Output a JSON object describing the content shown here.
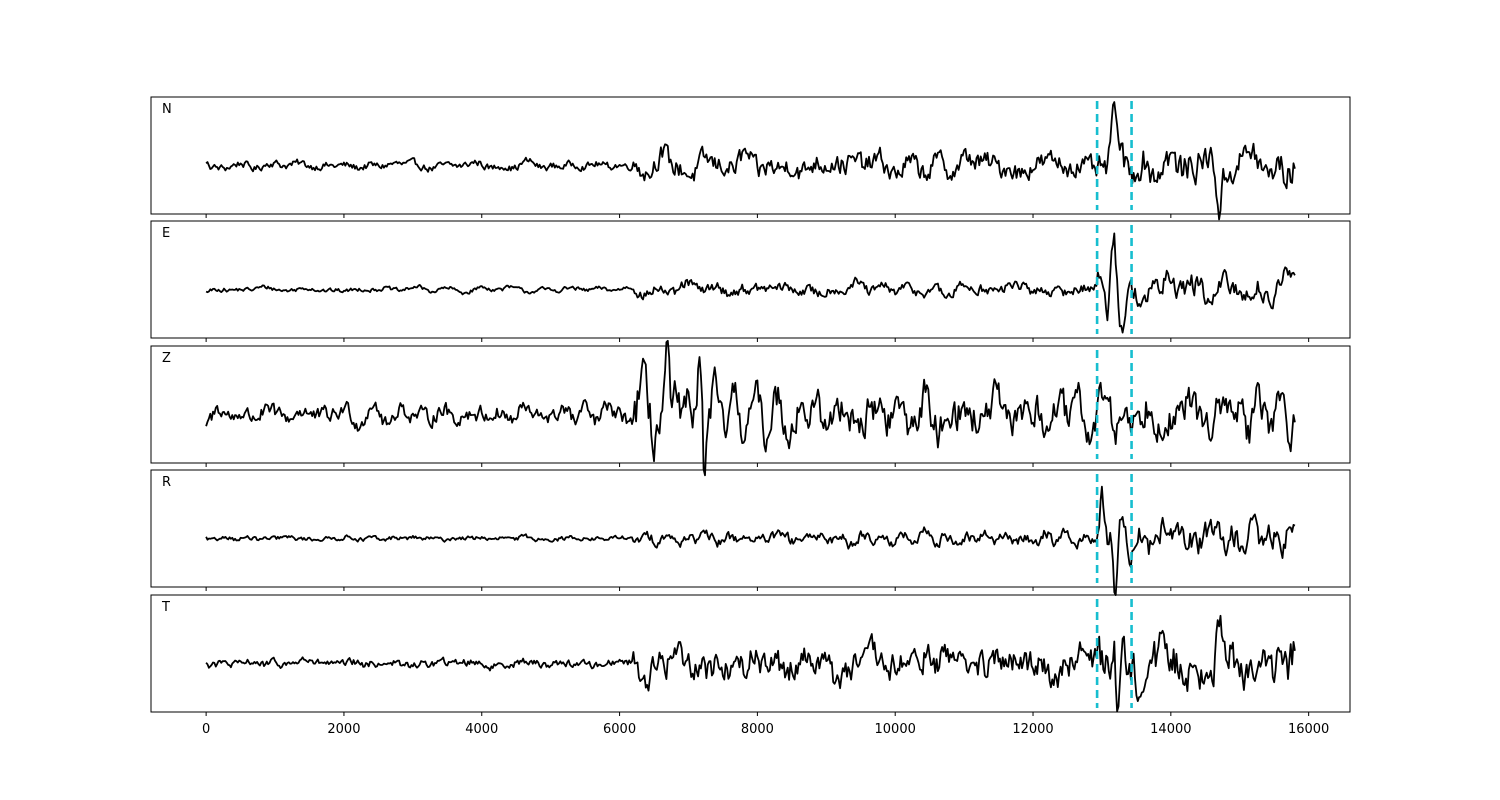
{
  "chart_data": {
    "type": "line",
    "title": "",
    "xlabel": "",
    "ylabel": "",
    "xlim": [
      -800,
      16600
    ],
    "xticks": [
      0,
      2000,
      4000,
      6000,
      8000,
      10000,
      12000,
      14000,
      16000
    ],
    "xtick_labels": [
      "0",
      "2000",
      "4000",
      "6000",
      "8000",
      "10000",
      "12000",
      "14000",
      "16000"
    ],
    "n_samples": 15800,
    "sharex": true,
    "y_ticks_visible": false,
    "grid": false,
    "line_color": "#000000",
    "pick_color": "#17becf",
    "picks": [
      12930,
      13430
    ],
    "panels": [
      {
        "label": "N",
        "ylim": [
          -1.0,
          1.0
        ],
        "segments": [
          {
            "start": 0,
            "end": 6200,
            "amp": 0.07
          },
          {
            "start": 6200,
            "end": 12930,
            "amp": 0.2
          },
          {
            "start": 12930,
            "end": 13430,
            "amp": 0.3
          },
          {
            "start": 13430,
            "end": 15800,
            "amp": 0.3
          }
        ],
        "events": [
          {
            "x": 13190,
            "amp": 0.95
          },
          {
            "x": 14700,
            "amp": -0.6
          }
        ]
      },
      {
        "label": "E",
        "ylim": [
          -1.0,
          1.0
        ],
        "segments": [
          {
            "start": 0,
            "end": 6200,
            "amp": 0.04
          },
          {
            "start": 6200,
            "end": 12930,
            "amp": 0.1
          },
          {
            "start": 12930,
            "end": 13430,
            "amp": 0.25
          },
          {
            "start": 13430,
            "end": 15800,
            "amp": 0.22
          }
        ],
        "events": [
          {
            "x": 13170,
            "amp": 1.0
          },
          {
            "x": 13080,
            "amp": -0.5
          },
          {
            "x": 13290,
            "amp": -0.5
          }
        ]
      },
      {
        "label": "Z",
        "ylim": [
          -1.0,
          1.0
        ],
        "segments": [
          {
            "start": 0,
            "end": 6200,
            "amp": 0.15
          },
          {
            "start": 6200,
            "end": 7400,
            "amp": 0.5
          },
          {
            "start": 7400,
            "end": 12930,
            "amp": 0.35
          },
          {
            "start": 12930,
            "end": 15800,
            "amp": 0.35
          }
        ],
        "events": [
          {
            "x": 6680,
            "amp": 0.75
          },
          {
            "x": 7170,
            "amp": 0.85
          },
          {
            "x": 7230,
            "amp": -0.8
          }
        ]
      },
      {
        "label": "R",
        "ylim": [
          -1.0,
          1.0
        ],
        "segments": [
          {
            "start": 0,
            "end": 6200,
            "amp": 0.04
          },
          {
            "start": 6200,
            "end": 12930,
            "amp": 0.1
          },
          {
            "start": 12930,
            "end": 13430,
            "amp": 0.3
          },
          {
            "start": 13430,
            "end": 15800,
            "amp": 0.25
          }
        ],
        "events": [
          {
            "x": 13190,
            "amp": -1.0
          },
          {
            "x": 13270,
            "amp": 0.6
          },
          {
            "x": 13000,
            "amp": 0.55
          },
          {
            "x": 14700,
            "amp": 0.35
          }
        ]
      },
      {
        "label": "T",
        "ylim": [
          -1.0,
          1.0
        ],
        "segments": [
          {
            "start": 0,
            "end": 6200,
            "amp": 0.07
          },
          {
            "start": 6200,
            "end": 12930,
            "amp": 0.28
          },
          {
            "start": 12930,
            "end": 13430,
            "amp": 0.5
          },
          {
            "start": 13430,
            "end": 15800,
            "amp": 0.4
          }
        ],
        "events": [
          {
            "x": 13170,
            "amp": 1.0
          },
          {
            "x": 13230,
            "amp": -0.7
          },
          {
            "x": 14700,
            "amp": 0.75
          },
          {
            "x": 15800,
            "amp": 0.35
          }
        ]
      }
    ]
  }
}
